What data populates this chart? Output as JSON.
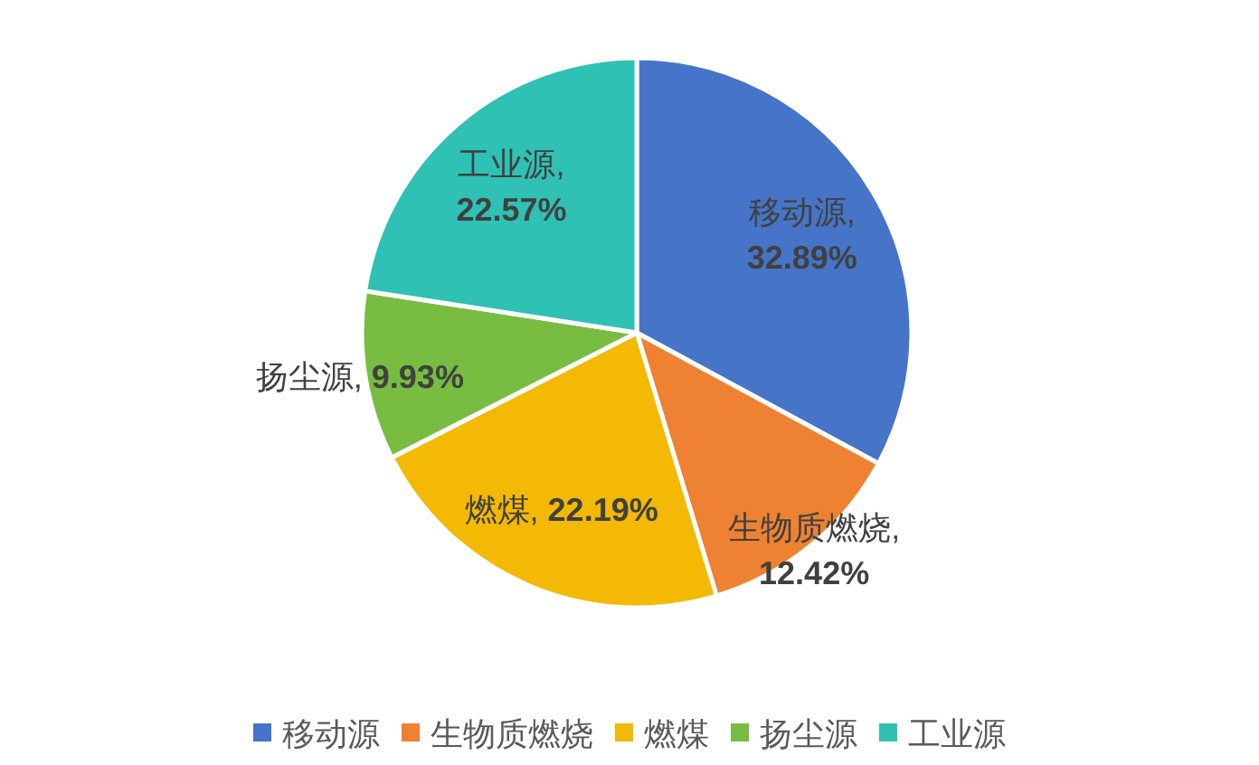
{
  "chart_data": {
    "type": "pie",
    "categories": [
      "移动源",
      "生物质燃烧",
      "燃煤",
      "扬尘源",
      "工业源"
    ],
    "values": [
      32.89,
      12.42,
      22.19,
      9.93,
      22.57
    ],
    "colors": [
      "#4674c8",
      "#ee8232",
      "#f3b905",
      "#78bd42",
      "#2fc1b4"
    ],
    "value_labels": [
      "移动源, 32.89%",
      "生物质燃烧, 12.42%",
      "燃煤, 22.19%",
      "扬尘源, 9.93%",
      "工业源, 22.57%"
    ],
    "legend": "bottom"
  }
}
